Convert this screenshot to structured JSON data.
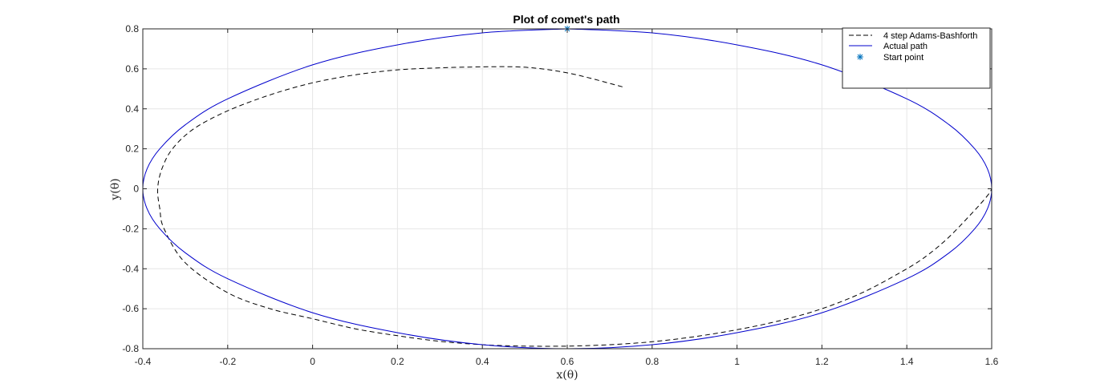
{
  "chart_data": {
    "type": "line",
    "title": "Plot of comet's path",
    "xlabel": "x(θ)",
    "ylabel": "y(θ)",
    "xlim": [
      -0.4,
      1.6
    ],
    "ylim": [
      -0.8,
      0.8
    ],
    "xticks": [
      -0.4,
      -0.2,
      0,
      0.2,
      0.4,
      0.6,
      0.8,
      1,
      1.2,
      1.4,
      1.6
    ],
    "xtick_labels": [
      "-0.4",
      "-0.2",
      "0",
      "0.2",
      "0.4",
      "0.6",
      "0.8",
      "1",
      "1.2",
      "1.4",
      "1.6"
    ],
    "yticks": [
      -0.8,
      -0.6,
      -0.4,
      -0.2,
      0,
      0.2,
      0.4,
      0.6,
      0.8
    ],
    "ytick_labels": [
      "-0.8",
      "-0.6",
      "-0.4",
      "-0.2",
      "0",
      "0.2",
      "0.4",
      "0.6",
      "0.8"
    ],
    "grid": true,
    "legend_position": "top-right",
    "colors": {
      "adams": "#000000",
      "actual": "#0000cc",
      "start": "#0072bd",
      "grid": "#e6e6e6",
      "axis": "#262626"
    },
    "series": [
      {
        "name": "4 step Adams-Bashforth",
        "style": "dashed",
        "x": [
          0.73,
          0.66,
          0.6,
          0.54,
          0.48,
          0.4,
          0.3,
          0.2,
          0.1,
          0.0,
          -0.1,
          -0.2,
          -0.28,
          -0.33,
          -0.355,
          -0.365,
          -0.36,
          -0.35,
          -0.3,
          -0.2,
          -0.1,
          0.0,
          0.1,
          0.2,
          0.3,
          0.4,
          0.5,
          0.6,
          0.7,
          0.8,
          0.9,
          1.0,
          1.1,
          1.2,
          1.3,
          1.4,
          1.45,
          1.5,
          1.55,
          1.58,
          1.595,
          1.6
        ],
        "y": [
          0.51,
          0.55,
          0.58,
          0.6,
          0.61,
          0.61,
          0.605,
          0.595,
          0.57,
          0.53,
          0.47,
          0.39,
          0.3,
          0.2,
          0.1,
          0.0,
          -0.1,
          -0.2,
          -0.37,
          -0.52,
          -0.6,
          -0.65,
          -0.7,
          -0.735,
          -0.763,
          -0.78,
          -0.787,
          -0.787,
          -0.78,
          -0.765,
          -0.74,
          -0.705,
          -0.66,
          -0.6,
          -0.515,
          -0.4,
          -0.33,
          -0.24,
          -0.13,
          -0.06,
          -0.02,
          0.0
        ]
      },
      {
        "name": "Actual path",
        "style": "solid",
        "x": [
          0.6,
          0.4,
          0.2,
          0.0,
          -0.2,
          -0.3,
          -0.36,
          -0.39,
          -0.4,
          -0.39,
          -0.36,
          -0.3,
          -0.2,
          0.0,
          0.2,
          0.4,
          0.6,
          0.8,
          1.0,
          1.2,
          1.4,
          1.5,
          1.56,
          1.59,
          1.6,
          1.59,
          1.56,
          1.5,
          1.4,
          1.2,
          1.0,
          0.8,
          0.6
        ],
        "y": [
          0.8,
          0.78,
          0.72,
          0.62,
          0.45,
          0.32,
          0.2,
          0.1,
          0.0,
          -0.1,
          -0.2,
          -0.32,
          -0.45,
          -0.62,
          -0.72,
          -0.78,
          -0.8,
          -0.78,
          -0.72,
          -0.62,
          -0.45,
          -0.32,
          -0.2,
          -0.1,
          0.0,
          0.1,
          0.2,
          0.32,
          0.45,
          0.62,
          0.72,
          0.78,
          0.8
        ]
      },
      {
        "name": "Start point",
        "style": "marker",
        "x": [
          0.6
        ],
        "y": [
          0.8
        ]
      }
    ]
  }
}
